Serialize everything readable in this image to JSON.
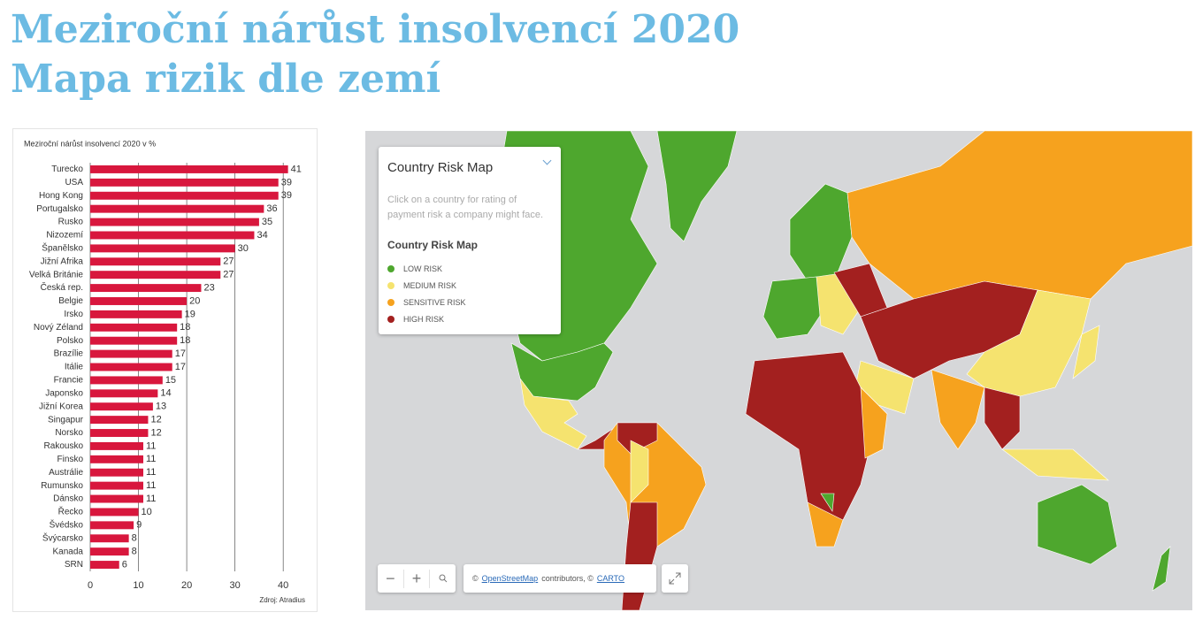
{
  "header": {
    "title": "Meziroční nárůst insolvencí 2020",
    "subtitle": "Mapa rizik dle zemí"
  },
  "chart_data": {
    "type": "hbar",
    "title": "Meziroční nárůst insolvencí 2020 v %",
    "source": "Zdroj: Atradius",
    "categories": [
      "Turecko",
      "USA",
      "Hong Kong",
      "Portugalsko",
      "Rusko",
      "Nizozemí",
      "Španělsko",
      "Jižní Afrika",
      "Velká Británie",
      "Česká rep.",
      "Belgie",
      "Irsko",
      "Nový Zéland",
      "Polsko",
      "Brazílie",
      "Itálie",
      "Francie",
      "Japonsko",
      "Jižní Korea",
      "Singapur",
      "Norsko",
      "Rakousko",
      "Finsko",
      "Austrálie",
      "Rumunsko",
      "Dánsko",
      "Řecko",
      "Švédsko",
      "Švýcarsko",
      "Kanada",
      "SRN"
    ],
    "values": [
      41,
      39,
      39,
      36,
      35,
      34,
      30,
      27,
      27,
      23,
      20,
      19,
      18,
      18,
      17,
      17,
      15,
      14,
      13,
      12,
      12,
      11,
      11,
      11,
      11,
      11,
      10,
      9,
      8,
      8,
      6
    ],
    "color": "#d8173d",
    "xlim": [
      0,
      44
    ],
    "xticks": [
      0,
      10,
      20,
      30,
      40
    ],
    "grid": true
  },
  "map": {
    "title": "Country Risk Map",
    "description": "Click on a country for rating of payment risk a company might face.",
    "legend_title": "Country Risk Map",
    "legend": [
      {
        "label": "LOW RISK",
        "color": "#4ea72e"
      },
      {
        "label": "MEDIUM RISK",
        "color": "#f5e36f"
      },
      {
        "label": "SENSITIVE RISK",
        "color": "#f6a21e"
      },
      {
        "label": "HIGH RISK",
        "color": "#a3201f"
      }
    ],
    "zoom_out": "−",
    "zoom_in": "+",
    "attribution": {
      "prefix": "©",
      "osm": "OpenStreetMap",
      "middle": "contributors, ©",
      "carto": "CARTO"
    }
  }
}
